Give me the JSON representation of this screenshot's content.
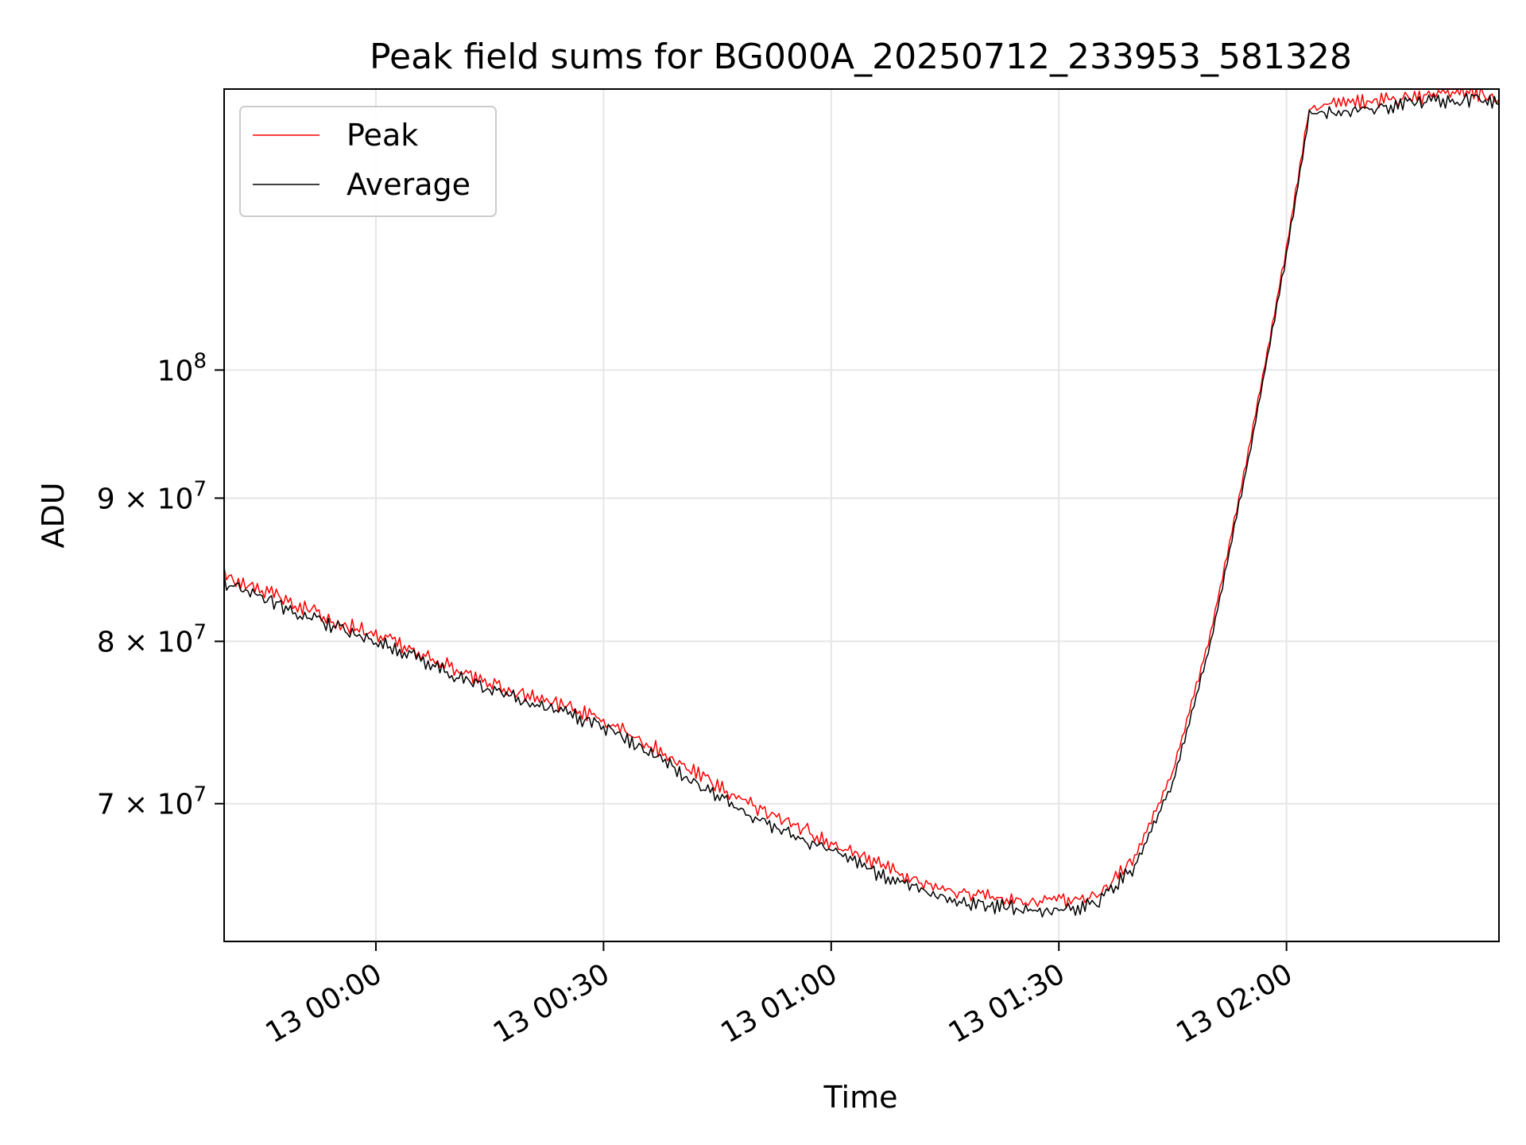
{
  "chart_data": {
    "type": "line",
    "title": "Peak field sums for BG000A_20250712_233953_581328",
    "xlabel": "Time",
    "ylabel": "ADU",
    "x_range": [
      "12 23:40",
      "13 02:28"
    ],
    "y_scale": "log",
    "ylim": [
      62500000,
      126000000
    ],
    "grid": true,
    "legend": "upper left",
    "x_ticks": [
      {
        "value": "13 00:00",
        "label": "13 00:00"
      },
      {
        "value": "13 00:30",
        "label": "13 00:30"
      },
      {
        "value": "13 01:00",
        "label": "13 01:00"
      },
      {
        "value": "13 01:30",
        "label": "13 01:30"
      },
      {
        "value": "13 02:00",
        "label": "13 02:00"
      }
    ],
    "y_ticks": [
      {
        "value": 70000000,
        "base": "7 × 10",
        "exp": "7"
      },
      {
        "value": 80000000,
        "base": "8 × 10",
        "exp": "7"
      },
      {
        "value": 90000000,
        "base": "9 × 10",
        "exp": "7"
      },
      {
        "value": 100000000,
        "base": "10",
        "exp": "8"
      }
    ],
    "series": [
      {
        "name": "Peak",
        "color": "#ff0000",
        "x": [
          "12 23:40",
          "12 23:45",
          "12 23:50",
          "12 23:55",
          "13 00:00",
          "13 00:05",
          "13 00:10",
          "13 00:15",
          "13 00:20",
          "13 00:25",
          "13 00:30",
          "13 00:35",
          "13 00:40",
          "13 00:45",
          "13 00:50",
          "13 00:55",
          "13 01:00",
          "13 01:05",
          "13 01:10",
          "13 01:15",
          "13 01:20",
          "13 01:25",
          "13 01:30",
          "13 01:35",
          "13 01:40",
          "13 01:45",
          "13 01:50",
          "13 01:55",
          "13 02:00",
          "13 02:03",
          "13 02:05",
          "13 02:10",
          "13 02:15",
          "13 02:20",
          "13 02:25",
          "13 02:28"
        ],
        "y": [
          84500000,
          83500000,
          82300000,
          81300000,
          80400000,
          79400000,
          78300000,
          77300000,
          76500000,
          75800000,
          75000000,
          73800000,
          72400000,
          71000000,
          69800000,
          68800000,
          67800000,
          66800000,
          65900000,
          65300000,
          64900000,
          64700000,
          64600000,
          64900000,
          67000000,
          71800000,
          80500000,
          93500000,
          110500000,
          124000000,
          124300000,
          124700000,
          125100000,
          125300000,
          125600000,
          125000000
        ]
      },
      {
        "name": "Average",
        "color": "#000000",
        "x": [
          "12 23:40",
          "12 23:45",
          "12 23:50",
          "12 23:55",
          "13 00:00",
          "13 00:05",
          "13 00:10",
          "13 00:15",
          "13 00:20",
          "13 00:25",
          "13 00:30",
          "13 00:35",
          "13 00:40",
          "13 00:45",
          "13 00:50",
          "13 00:55",
          "13 01:00",
          "13 01:05",
          "13 01:10",
          "13 01:15",
          "13 01:20",
          "13 01:25",
          "13 01:30",
          "13 01:35",
          "13 01:40",
          "13 01:45",
          "13 01:50",
          "13 01:55",
          "13 02:00",
          "13 02:03",
          "13 02:05",
          "13 02:10",
          "13 02:15",
          "13 02:20",
          "13 02:25",
          "13 02:28"
        ],
        "y": [
          84000000,
          83000000,
          81800000,
          80900000,
          80000000,
          79000000,
          77900000,
          76900000,
          76100000,
          75400000,
          74600000,
          73300000,
          71800000,
          70400000,
          69200000,
          68200000,
          67300000,
          66300000,
          65400000,
          64800000,
          64400000,
          64200000,
          64100000,
          64400000,
          66500000,
          71200000,
          79900000,
          93000000,
          110000000,
          123300000,
          123600000,
          124000000,
          124400000,
          124700000,
          125000000,
          124400000
        ]
      }
    ]
  }
}
